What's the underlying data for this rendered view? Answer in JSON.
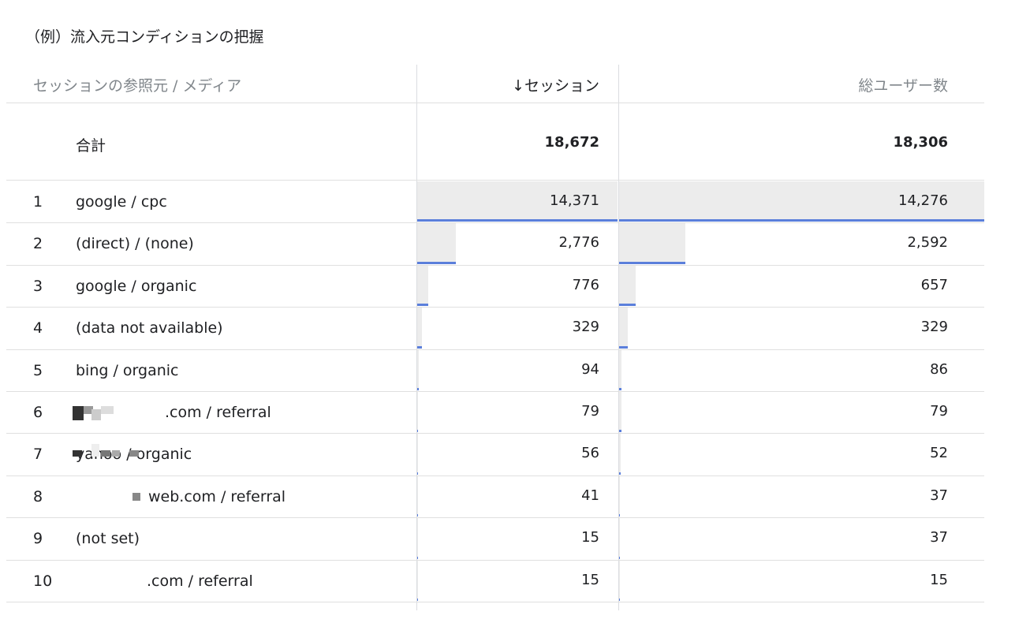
{
  "caption": "（例）流入元コンディションの把握",
  "headers": {
    "source": "セッションの参照元 / メディア",
    "sessions": "↓セッション",
    "users": "総ユーザー数"
  },
  "total": {
    "label": "合計",
    "sessions": "18,672",
    "users": "18,306"
  },
  "max_sessions": 14371,
  "max_users": 14276,
  "rows": [
    {
      "rank": "1",
      "source": "google / cpc",
      "sessions": "14,371",
      "users": "14,276",
      "s": 14371,
      "u": 14276
    },
    {
      "rank": "2",
      "source": "(direct) / (none)",
      "sessions": "2,776",
      "users": "2,592",
      "s": 2776,
      "u": 2592
    },
    {
      "rank": "3",
      "source": "google / organic",
      "sessions": "776",
      "users": "657",
      "s": 776,
      "u": 657
    },
    {
      "rank": "4",
      "source": "(data not available)",
      "sessions": "329",
      "users": "329",
      "s": 329,
      "u": 329
    },
    {
      "rank": "5",
      "source": "bing / organic",
      "sessions": "94",
      "users": "86",
      "s": 94,
      "u": 86
    },
    {
      "rank": "6",
      "source": ".com / referral",
      "sessions": "79",
      "users": "79",
      "s": 79,
      "u": 79,
      "mask": "a"
    },
    {
      "rank": "7",
      "source": "yahoo / organic",
      "sessions": "56",
      "users": "52",
      "s": 56,
      "u": 52
    },
    {
      "rank": "8",
      "source": "web.com / referral",
      "sessions": "41",
      "users": "37",
      "s": 41,
      "u": 37,
      "mask": "b"
    },
    {
      "rank": "9",
      "source": "(not set)",
      "sessions": "15",
      "users": "37",
      "s": 15,
      "u": 37
    },
    {
      "rank": "10",
      "source": ".com / referral",
      "sessions": "15",
      "users": "15",
      "s": 15,
      "u": 15,
      "mask": "c"
    }
  ],
  "colors": {
    "bar_bg": "#ececec",
    "bar_line": "#5b7fdb"
  }
}
